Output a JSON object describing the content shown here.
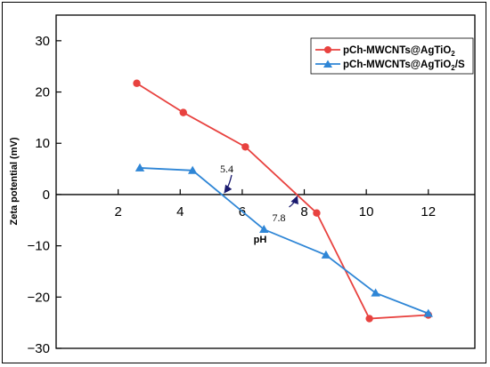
{
  "chart_data": {
    "type": "line",
    "xlabel": "pH",
    "ylabel": "Zeta potential (mV)",
    "xlim": [
      0,
      13.5
    ],
    "ylim": [
      -30,
      35
    ],
    "xticks": [
      2,
      4,
      6,
      8,
      10,
      12
    ],
    "xtick_labels": [
      "2",
      "4",
      "6",
      "8",
      "10",
      "12"
    ],
    "yticks": [
      30,
      20,
      10,
      0,
      -10,
      -20,
      -30
    ],
    "ytick_labels": [
      "30",
      "20",
      "10",
      "0",
      "−10",
      "−20",
      "−30"
    ],
    "grid": false,
    "legend_position": "top-right",
    "series": [
      {
        "name": "pCh-MWCNTs@AgTiO",
        "name_subscript": "2",
        "color": "#e8423f",
        "marker": "circle",
        "points": [
          [
            2.6,
            21.7
          ],
          [
            4.1,
            16.0
          ],
          [
            6.1,
            9.3
          ],
          [
            8.4,
            -3.6
          ],
          [
            10.1,
            -24.2
          ],
          [
            12.0,
            -23.5
          ]
        ]
      },
      {
        "name": "pCh-MWCNTs@AgTiO",
        "name_subscript": "2",
        "name_suffix": "/S",
        "color": "#2f86d6",
        "marker": "triangle",
        "points": [
          [
            2.7,
            5.2
          ],
          [
            4.4,
            4.7
          ],
          [
            6.7,
            -6.8
          ],
          [
            8.7,
            -11.8
          ],
          [
            10.3,
            -19.2
          ],
          [
            12.0,
            -23.2
          ]
        ]
      }
    ],
    "annotations": [
      {
        "text": "5.4",
        "x": 5.4,
        "y": 0
      },
      {
        "text": "7.8",
        "x": 7.8,
        "y": 0
      }
    ]
  }
}
